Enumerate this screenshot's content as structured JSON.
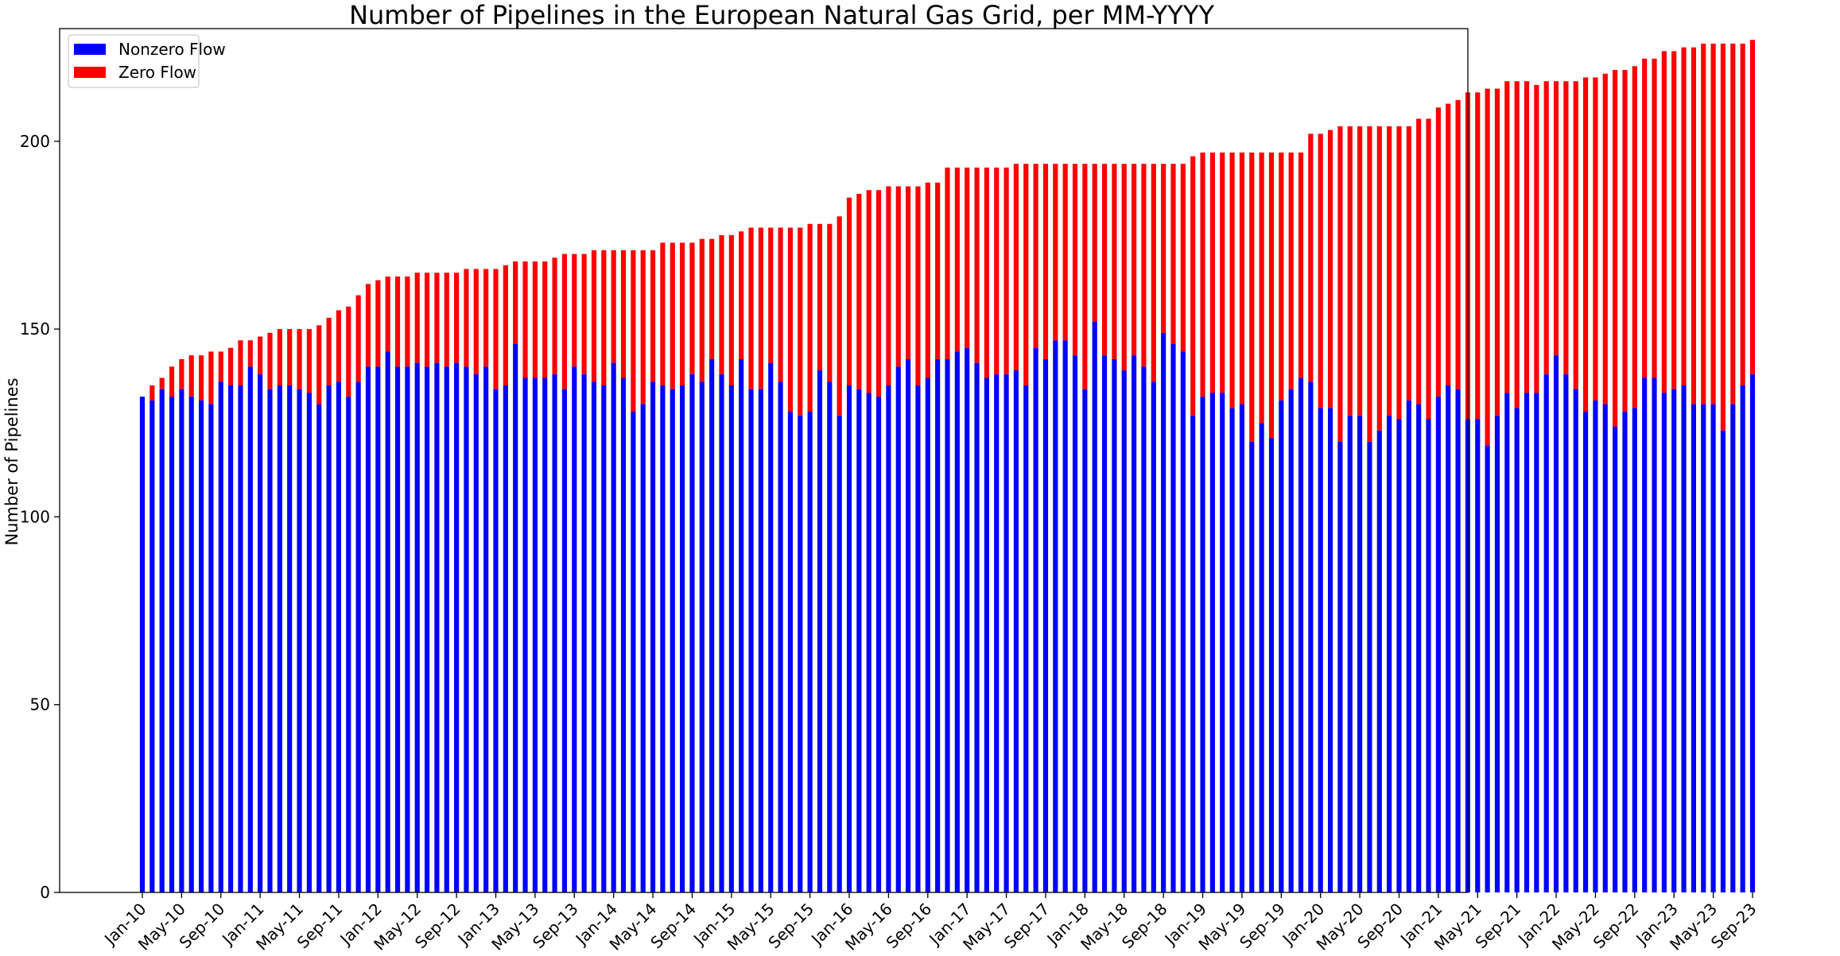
{
  "chart_data": {
    "type": "bar",
    "stacked": true,
    "title": "Number of Pipelines in the European Natural Gas Grid, per MM-YYYY",
    "xlabel": "",
    "ylabel": "Number of Pipelines",
    "ylim": [
      0,
      230
    ],
    "yticks": [
      0,
      50,
      100,
      150,
      200
    ],
    "grid": false,
    "legend_position": "top-left",
    "x_tick_labels": [
      "Jan-10",
      "May-10",
      "Sep-10",
      "Jan-11",
      "May-11",
      "Sep-11",
      "Jan-12",
      "May-12",
      "Sep-12",
      "Jan-13",
      "May-13",
      "Sep-13",
      "Jan-14",
      "May-14",
      "Sep-14",
      "Jan-15",
      "May-15",
      "Sep-15",
      "Jan-16",
      "May-16",
      "Sep-16",
      "Jan-17",
      "May-17",
      "Sep-17",
      "Jan-18",
      "May-18",
      "Sep-18",
      "Jan-19",
      "May-19",
      "Sep-19",
      "Jan-20",
      "May-20",
      "Sep-20",
      "Jan-21",
      "May-21",
      "Sep-21",
      "Jan-22",
      "May-22",
      "Sep-22",
      "Jan-23",
      "May-23",
      "Sep-23"
    ],
    "categories": [
      "Jan-10",
      "Feb-10",
      "Mar-10",
      "Apr-10",
      "May-10",
      "Jun-10",
      "Jul-10",
      "Aug-10",
      "Sep-10",
      "Oct-10",
      "Nov-10",
      "Dec-10",
      "Jan-11",
      "Feb-11",
      "Mar-11",
      "Apr-11",
      "May-11",
      "Jun-11",
      "Jul-11",
      "Aug-11",
      "Sep-11",
      "Oct-11",
      "Nov-11",
      "Dec-11",
      "Jan-12",
      "Feb-12",
      "Mar-12",
      "Apr-12",
      "May-12",
      "Jun-12",
      "Jul-12",
      "Aug-12",
      "Sep-12",
      "Oct-12",
      "Nov-12",
      "Dec-12",
      "Jan-13",
      "Feb-13",
      "Mar-13",
      "Apr-13",
      "May-13",
      "Jun-13",
      "Jul-13",
      "Aug-13",
      "Sep-13",
      "Oct-13",
      "Nov-13",
      "Dec-13",
      "Jan-14",
      "Feb-14",
      "Mar-14",
      "Apr-14",
      "May-14",
      "Jun-14",
      "Jul-14",
      "Aug-14",
      "Sep-14",
      "Oct-14",
      "Nov-14",
      "Dec-14",
      "Jan-15",
      "Feb-15",
      "Mar-15",
      "Apr-15",
      "May-15",
      "Jun-15",
      "Jul-15",
      "Aug-15",
      "Sep-15",
      "Oct-15",
      "Nov-15",
      "Dec-15",
      "Jan-16",
      "Feb-16",
      "Mar-16",
      "Apr-16",
      "May-16",
      "Jun-16",
      "Jul-16",
      "Aug-16",
      "Sep-16",
      "Oct-16",
      "Nov-16",
      "Dec-16",
      "Jan-17",
      "Feb-17",
      "Mar-17",
      "Apr-17",
      "May-17",
      "Jun-17",
      "Jul-17",
      "Aug-17",
      "Sep-17",
      "Oct-17",
      "Nov-17",
      "Dec-17",
      "Jan-18",
      "Feb-18",
      "Mar-18",
      "Apr-18",
      "May-18",
      "Jun-18",
      "Jul-18",
      "Aug-18",
      "Sep-18",
      "Oct-18",
      "Nov-18",
      "Dec-18",
      "Jan-19",
      "Feb-19",
      "Mar-19",
      "Apr-19",
      "May-19",
      "Jun-19",
      "Jul-19",
      "Aug-19",
      "Sep-19",
      "Oct-19",
      "Nov-19",
      "Dec-19",
      "Jan-20",
      "Feb-20",
      "Mar-20",
      "Apr-20",
      "May-20",
      "Jun-20",
      "Jul-20",
      "Aug-20",
      "Sep-20",
      "Oct-20",
      "Nov-20",
      "Dec-20",
      "Jan-21",
      "Feb-21",
      "Mar-21",
      "Apr-21",
      "May-21",
      "Jun-21",
      "Jul-21",
      "Aug-21",
      "Sep-21",
      "Oct-21",
      "Nov-21",
      "Dec-21",
      "Jan-22",
      "Feb-22",
      "Mar-22",
      "Apr-22",
      "May-22",
      "Jun-22",
      "Jul-22",
      "Aug-22",
      "Sep-22",
      "Oct-22",
      "Nov-22",
      "Dec-22",
      "Jan-23",
      "Feb-23",
      "Mar-23",
      "Apr-23",
      "May-23",
      "Jun-23",
      "Jul-23",
      "Aug-23",
      "Sep-23"
    ],
    "series": [
      {
        "name": "Nonzero Flow",
        "color": "#0000ff",
        "values": [
          132,
          131,
          134,
          132,
          134,
          132,
          131,
          130,
          136,
          135,
          135,
          140,
          138,
          134,
          135,
          135,
          134,
          133,
          130,
          135,
          136,
          132,
          136,
          140,
          140,
          144,
          140,
          140,
          141,
          140,
          141,
          140,
          141,
          140,
          138,
          140,
          134,
          135,
          146,
          137,
          137,
          137,
          138,
          134,
          140,
          138,
          136,
          135,
          141,
          137,
          128,
          130,
          136,
          135,
          134,
          135,
          138,
          136,
          142,
          138,
          135,
          142,
          134,
          134,
          141,
          136,
          128,
          127,
          128,
          139,
          136,
          127,
          135,
          134,
          133,
          132,
          135,
          140,
          142,
          135,
          137,
          142,
          142,
          144,
          145,
          141,
          137,
          138,
          138,
          139,
          135,
          145,
          142,
          147,
          147,
          143,
          134,
          152,
          143,
          142,
          139,
          143,
          140,
          136,
          149,
          146,
          144,
          127,
          132,
          133,
          133,
          129,
          130,
          120,
          125,
          121,
          131,
          134,
          137,
          136,
          129,
          129,
          120,
          127,
          127,
          120,
          123,
          127,
          126,
          131,
          130,
          126,
          132,
          135,
          134,
          126,
          126,
          119,
          127,
          133,
          129,
          133,
          133,
          138,
          143,
          138,
          134,
          128,
          131,
          130,
          124,
          128,
          129,
          137,
          137,
          133,
          134,
          135,
          130,
          130,
          130,
          123,
          130,
          135,
          138
        ]
      },
      {
        "name": "Zero Flow",
        "color": "#ff0000",
        "values": [
          0,
          4,
          3,
          8,
          8,
          11,
          12,
          14,
          8,
          10,
          12,
          7,
          10,
          15,
          15,
          15,
          16,
          17,
          21,
          18,
          19,
          24,
          23,
          22,
          23,
          20,
          24,
          24,
          24,
          25,
          24,
          25,
          24,
          26,
          28,
          26,
          32,
          32,
          22,
          31,
          31,
          31,
          31,
          36,
          30,
          32,
          35,
          36,
          30,
          34,
          43,
          41,
          35,
          38,
          39,
          38,
          35,
          38,
          32,
          37,
          40,
          34,
          43,
          43,
          36,
          41,
          49,
          50,
          50,
          39,
          42,
          53,
          50,
          52,
          54,
          55,
          53,
          48,
          46,
          53,
          52,
          47,
          51,
          49,
          48,
          52,
          56,
          55,
          55,
          55,
          59,
          49,
          52,
          47,
          47,
          51,
          60,
          42,
          51,
          52,
          55,
          51,
          54,
          58,
          45,
          48,
          50,
          69,
          65,
          64,
          64,
          68,
          67,
          77,
          72,
          76,
          66,
          63,
          60,
          66,
          73,
          74,
          84,
          77,
          77,
          84,
          81,
          77,
          78,
          73,
          76,
          80,
          77,
          75,
          77,
          87,
          87,
          95,
          87,
          83,
          87,
          83,
          82,
          78,
          73,
          78,
          82,
          89,
          86,
          88,
          95,
          91,
          91,
          85,
          85,
          91,
          90,
          90,
          95,
          96,
          96,
          103,
          96,
          91,
          89
        ]
      }
    ]
  }
}
